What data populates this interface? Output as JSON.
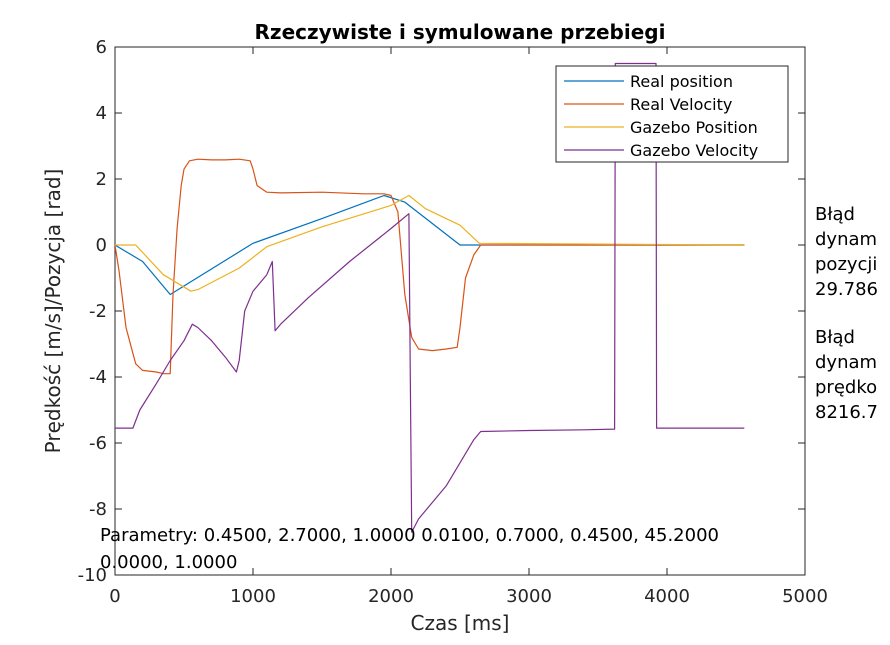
{
  "chart_data": {
    "type": "line",
    "title": "Rzeczywiste i symulowane przebiegi",
    "xlabel": "Czas [ms]",
    "ylabel": "Prędkość [m/s]/Pozycja [rad]",
    "xlim": [
      0,
      5000
    ],
    "ylim": [
      -10,
      6
    ],
    "xticks": [
      0,
      1000,
      2000,
      3000,
      4000,
      5000
    ],
    "yticks": [
      -10,
      -8,
      -6,
      -4,
      -2,
      0,
      2,
      4,
      6
    ],
    "grid": false,
    "legend_position": "top-right",
    "series": [
      {
        "name": "Real position",
        "color": "#0072BD",
        "x": [
          0,
          200,
          400,
          1000,
          1500,
          1950,
          2100,
          2500,
          2650,
          4560
        ],
        "y": [
          0,
          -0.5,
          -1.5,
          0.05,
          0.8,
          1.5,
          1.3,
          0.0,
          0.0,
          0.0
        ]
      },
      {
        "name": "Real Velocity",
        "color": "#D95319",
        "x": [
          0,
          30,
          80,
          150,
          200,
          300,
          350,
          400,
          420,
          450,
          480,
          500,
          540,
          600,
          700,
          800,
          900,
          980,
          1000,
          1030,
          1100,
          1200,
          1500,
          1800,
          1950,
          2000,
          2050,
          2100,
          2150,
          2200,
          2300,
          2400,
          2480,
          2500,
          2540,
          2600,
          2650,
          4560
        ],
        "y": [
          0,
          -0.8,
          -2.5,
          -3.6,
          -3.8,
          -3.85,
          -3.9,
          -3.9,
          -1.5,
          0.5,
          1.8,
          2.3,
          2.55,
          2.6,
          2.58,
          2.58,
          2.6,
          2.55,
          2.3,
          1.8,
          1.6,
          1.58,
          1.6,
          1.55,
          1.55,
          1.5,
          1.0,
          -1.5,
          -2.8,
          -3.15,
          -3.2,
          -3.15,
          -3.1,
          -2.5,
          -1.0,
          -0.3,
          0.0,
          0.0
        ]
      },
      {
        "name": "Gazebo Position",
        "color": "#EDB120",
        "x": [
          0,
          150,
          350,
          550,
          600,
          900,
          1100,
          1500,
          2000,
          2130,
          2250,
          2500,
          2640,
          4560
        ],
        "y": [
          0,
          0,
          -0.9,
          -1.4,
          -1.35,
          -0.7,
          -0.05,
          0.55,
          1.2,
          1.5,
          1.1,
          0.6,
          0.05,
          0.0
        ]
      },
      {
        "name": "Gazebo Velocity",
        "color": "#7E2F8E",
        "x": [
          0,
          130,
          180,
          300,
          400,
          500,
          560,
          600,
          700,
          800,
          880,
          900,
          940,
          1000,
          1100,
          1140,
          1160,
          1200,
          1400,
          1700,
          2000,
          2130,
          2140,
          2150,
          2200,
          2300,
          2400,
          2500,
          2600,
          2650,
          3000,
          3400,
          3620,
          3625,
          3650,
          3920,
          3925,
          4560
        ],
        "y": [
          -5.55,
          -5.55,
          -5.0,
          -4.2,
          -3.5,
          -2.9,
          -2.4,
          -2.5,
          -2.9,
          -3.4,
          -3.85,
          -3.5,
          -2.0,
          -1.4,
          -0.9,
          -0.5,
          -2.6,
          -2.4,
          -1.6,
          -0.5,
          0.5,
          0.95,
          -4.0,
          -8.7,
          -8.3,
          -7.8,
          -7.3,
          -6.6,
          -5.9,
          -5.65,
          -5.62,
          -5.6,
          -5.58,
          5.5,
          5.5,
          5.5,
          -5.55,
          -5.55
        ]
      }
    ],
    "annotations": {
      "params_line1": "Parametry: 0.4500, 2.7000, 1.0000 0.0100, 0.7000, 0.4500, 45.2000",
      "params_line2": "0.0000, 1.0000",
      "error_position": [
        "Błąd",
        "dynam",
        "pozycji",
        "29.786"
      ],
      "error_velocity": [
        "Błąd",
        "dynam",
        "prędko",
        "8216.7"
      ]
    }
  },
  "colors": {
    "axis": "#262626",
    "background": "#ffffff",
    "legend_border": "#262626"
  }
}
